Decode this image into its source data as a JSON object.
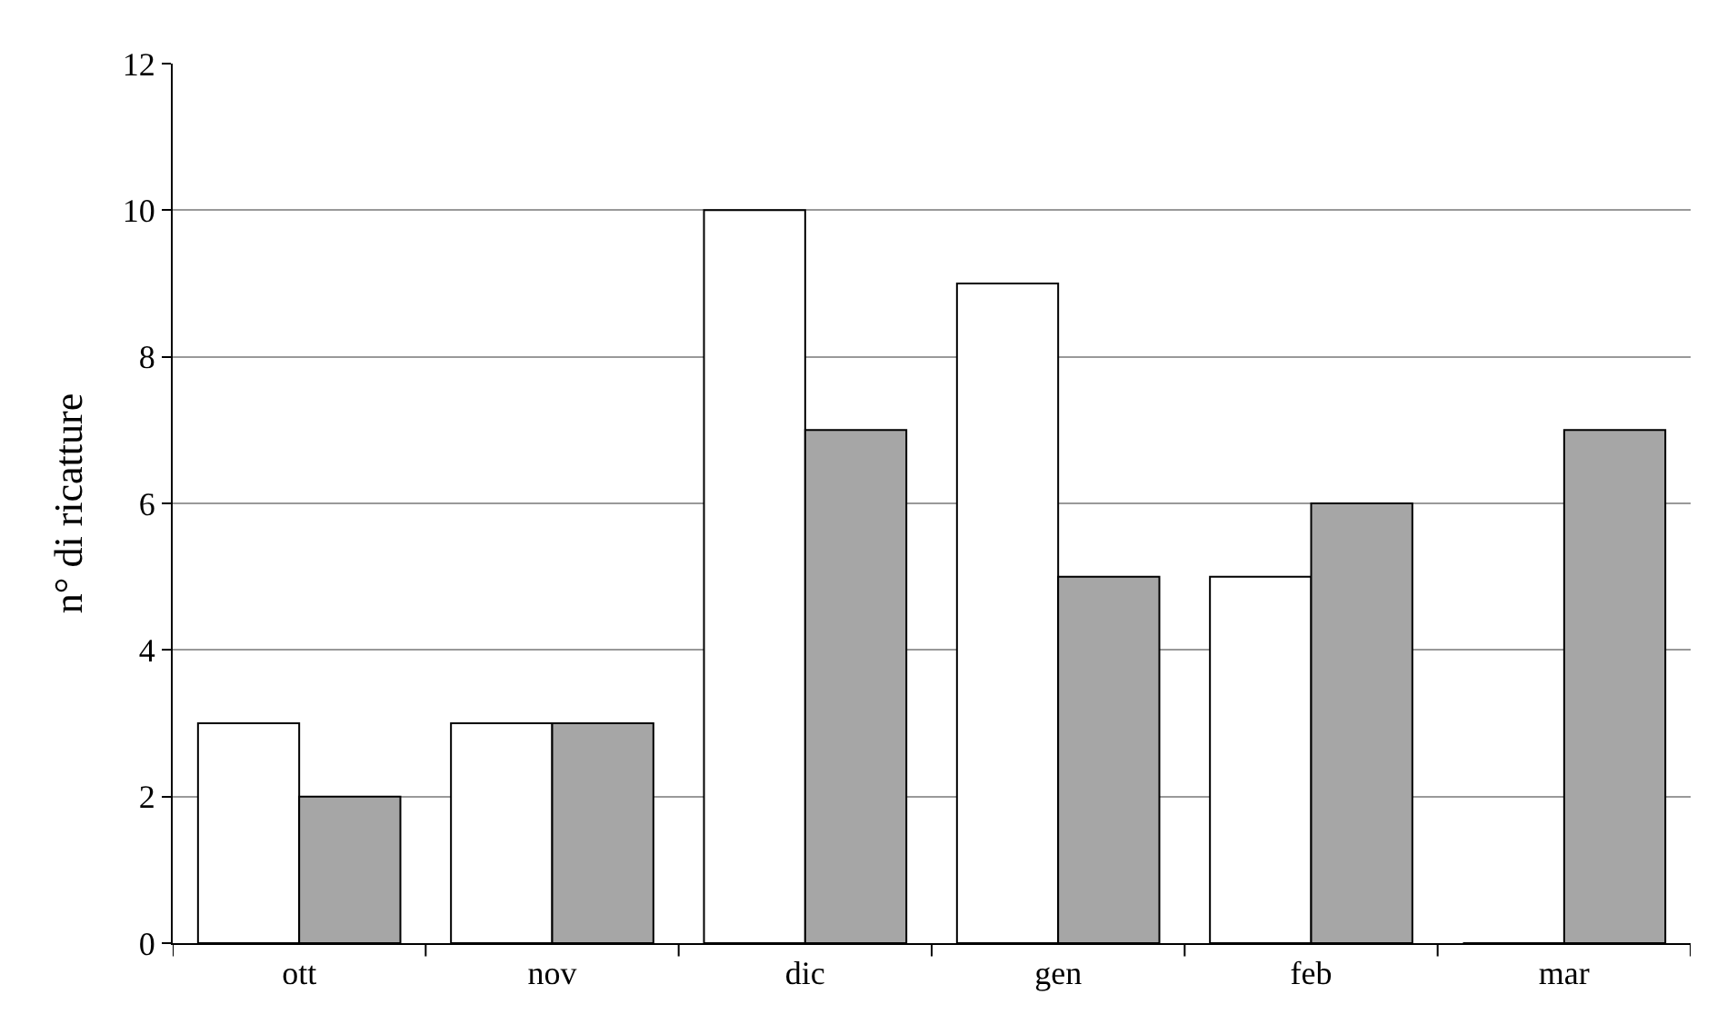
{
  "chart_data": {
    "type": "bar",
    "ylabel": "n° di ricatture",
    "categories": [
      "ott",
      "nov",
      "dic",
      "gen",
      "feb",
      "mar"
    ],
    "series": [
      {
        "color": "#ffffff",
        "values": [
          3,
          3,
          10,
          9,
          5,
          0
        ]
      },
      {
        "color": "#a6a6a6",
        "values": [
          2,
          3,
          7,
          5,
          6,
          7
        ]
      }
    ],
    "ylim": [
      0,
      12
    ],
    "yticks": [
      0,
      2,
      4,
      6,
      8,
      10,
      12
    ],
    "grid": "y"
  }
}
